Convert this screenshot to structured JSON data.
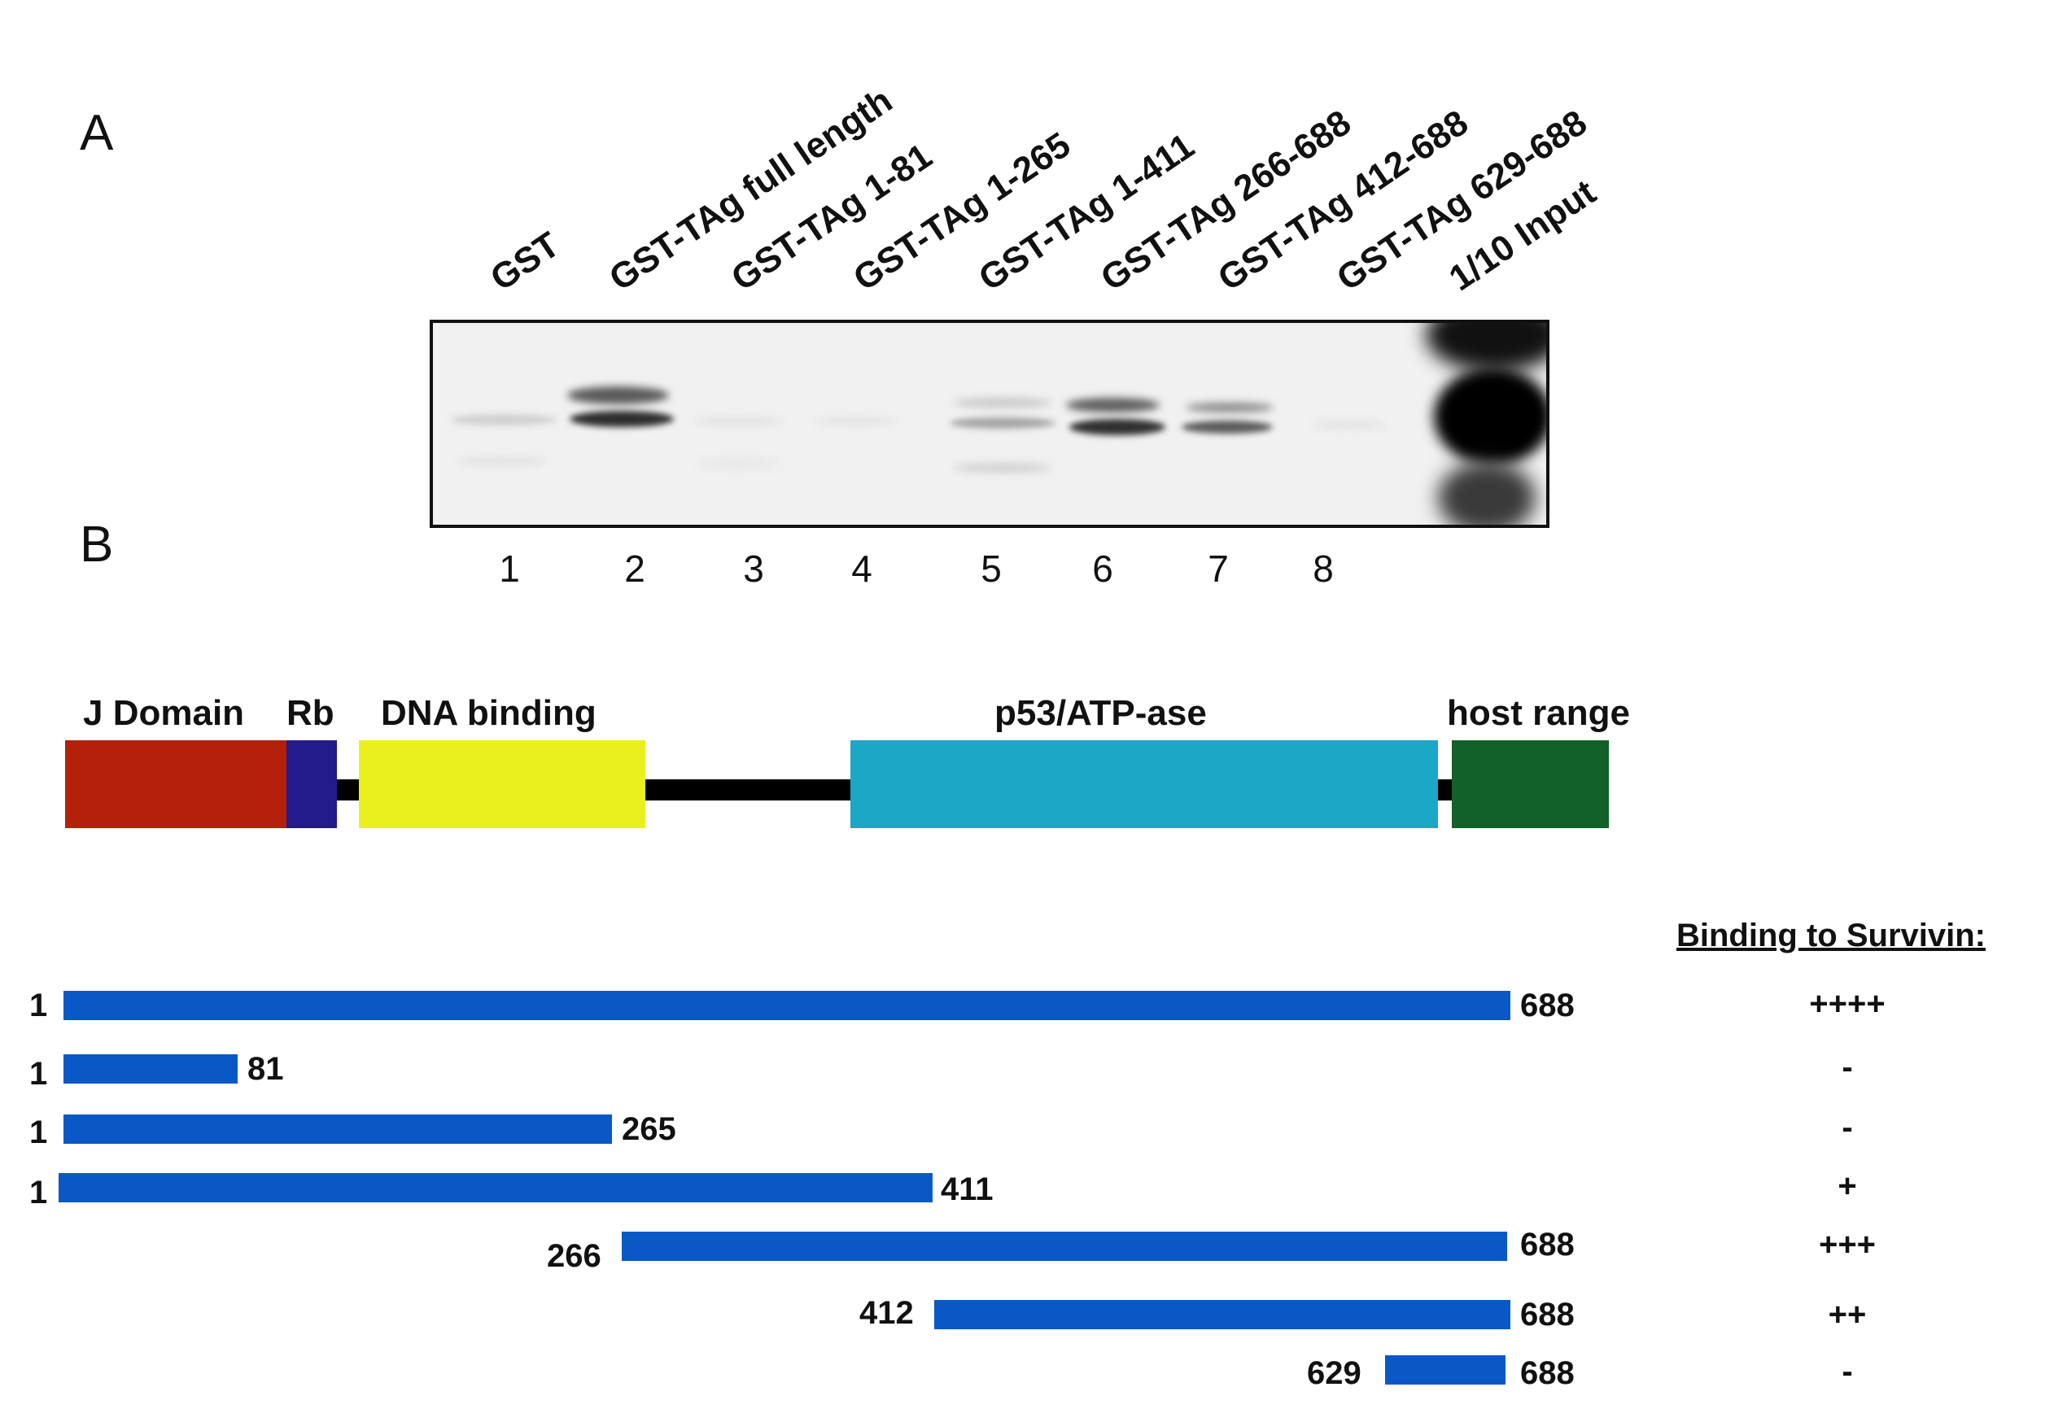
{
  "panel_a": {
    "letter": "A",
    "lane_labels": [
      "GST",
      "GST-TAg full length",
      "GST-TAg 1-81",
      "GST-TAg 1-265",
      "GST-TAg 1-411",
      "GST-TAg 266-688",
      "GST-TAg 412-688",
      "GST-TAg 629-688",
      "1/10 Input"
    ],
    "lane_numbers": [
      "1",
      "2",
      "3",
      "4",
      "5",
      "6",
      "7",
      "8"
    ]
  },
  "panel_b": {
    "letter": "B",
    "domains": [
      {
        "label": "J Domain",
        "color": "#b5200c"
      },
      {
        "label": "Rb",
        "color": "#231a8c"
      },
      {
        "label": "DNA binding",
        "color": "#e9f01e"
      },
      {
        "label": "p53/ATP-ase",
        "color": "#1da7c6"
      },
      {
        "label": "host range",
        "color": "#12602a"
      }
    ],
    "binding_header": "Binding to Survivin:",
    "fragments": [
      {
        "start": "1",
        "end": "688",
        "binding": "++++"
      },
      {
        "start": "1",
        "end": "81",
        "binding": "-"
      },
      {
        "start": "1",
        "end": "265",
        "binding": "-"
      },
      {
        "start": "1",
        "end": "411",
        "binding": "+"
      },
      {
        "start": "266",
        "end": "688",
        "binding": "+++"
      },
      {
        "start": "412",
        "end": "688",
        "binding": "++"
      },
      {
        "start": "629",
        "end": "688",
        "binding": "-"
      }
    ],
    "bar_color": "#0a58c6"
  }
}
